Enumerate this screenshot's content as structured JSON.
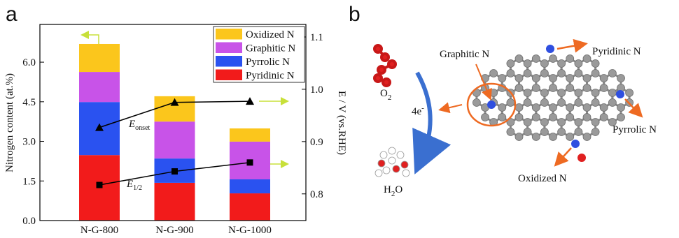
{
  "chart_data": {
    "type": "bar",
    "stacked": true,
    "panel_label": "a",
    "categories": [
      "N-G-800",
      "N-G-900",
      "N-G-1000"
    ],
    "series": [
      {
        "name": "Pyridinic N",
        "color": "#f21b1b",
        "values": [
          2.48,
          1.43,
          1.03
        ]
      },
      {
        "name": "Pyrrolic N",
        "color": "#2a52f0",
        "values": [
          2.01,
          0.92,
          0.53
        ]
      },
      {
        "name": "Graphitic N",
        "color": "#c853e8",
        "values": [
          1.14,
          1.4,
          1.43
        ]
      },
      {
        "name": "Oxidized N",
        "color": "#fbc61c",
        "values": [
          1.06,
          0.96,
          0.5
        ]
      },
      {
        "type": "line",
        "axis": "y2",
        "marker": "triangle",
        "color": "#000000",
        "label": {
          "main": "E",
          "sub": "onset"
        },
        "values": [
          0.927,
          0.975,
          0.977
        ]
      },
      {
        "type": "line",
        "axis": "y2",
        "marker": "square",
        "color": "#000000",
        "label": {
          "main": "E",
          "sub": "1/2"
        },
        "values": [
          0.817,
          0.843,
          0.86
        ]
      }
    ],
    "ylabel": "Nitrogen content (at.%)",
    "y2label": "E / V (vs.RHE)",
    "ylim": [
      0,
      7.43
    ],
    "yticks": [
      {
        "value": 0,
        "label": "0.0"
      },
      1.5,
      {
        "value": 3,
        "label": "3.0"
      },
      4.5,
      {
        "value": 6,
        "label": "6.0"
      }
    ],
    "y2lim": [
      0.749,
      1.124
    ],
    "y2ticks": [
      0.8,
      0.9,
      {
        "value": 1.0,
        "label": "1.0"
      },
      1.1
    ],
    "legend": "top-right"
  },
  "diagram": {
    "panel_label": "b",
    "labels": {
      "graphitic": "Graphitic N",
      "pyridinic": "Pyridinic N",
      "pyrrolic": "Pyrrolic N",
      "oxidized": "Oxidized N"
    },
    "o2": {
      "main": "O",
      "sub": "2"
    },
    "electrons": {
      "main": "4e",
      "sup": "-"
    },
    "h2o": {
      "pre": "H",
      "sub": "2",
      "post": "O"
    }
  }
}
